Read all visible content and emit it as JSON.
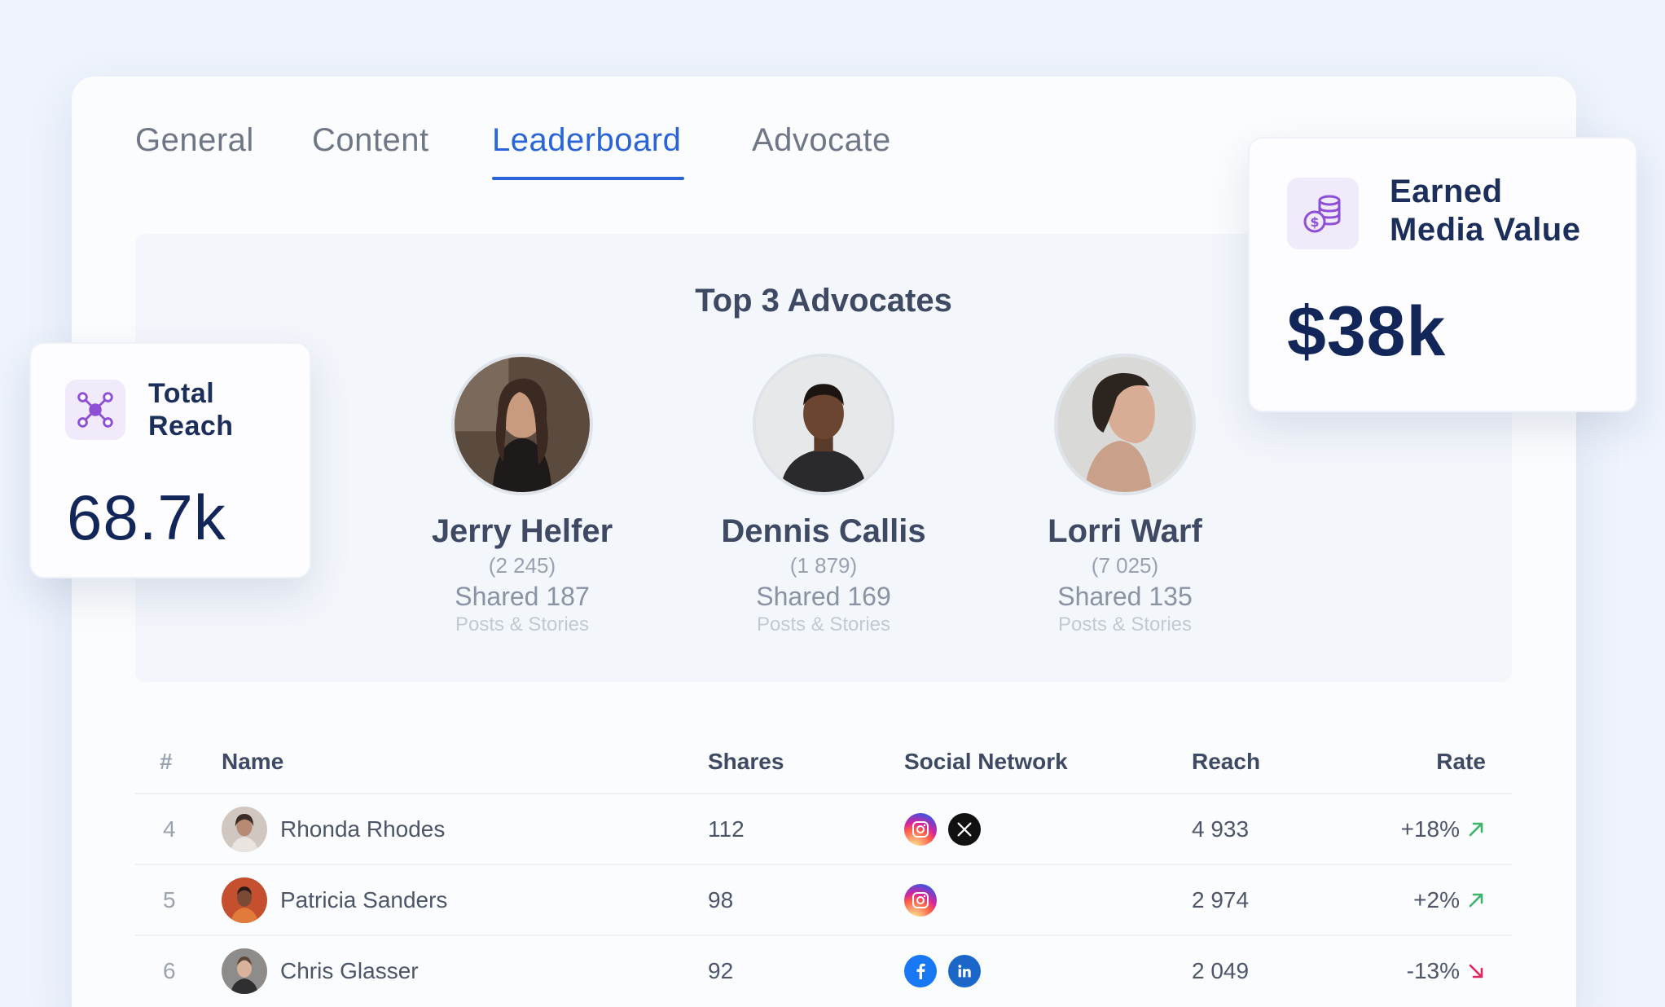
{
  "tabs": [
    {
      "label": "General",
      "active": false
    },
    {
      "label": "Content",
      "active": false
    },
    {
      "label": "Leaderboard",
      "active": true
    },
    {
      "label": "Advocate",
      "active": false
    }
  ],
  "top3": {
    "title": "Top 3 Advocates",
    "advocates": [
      {
        "name": "Jerry Helfer",
        "points": "(2 245)",
        "shared": "Shared 187",
        "sub": "Posts & Stories"
      },
      {
        "name": "Dennis Callis",
        "points": "(1 879)",
        "shared": "Shared 169",
        "sub": "Posts & Stories"
      },
      {
        "name": "Lorri Warf",
        "points": "(7 025)",
        "shared": "Shared 135",
        "sub": "Posts & Stories"
      }
    ]
  },
  "table": {
    "headers": {
      "rank": "#",
      "name": "Name",
      "shares": "Shares",
      "social": "Social Network",
      "reach": "Reach",
      "rate": "Rate"
    },
    "rows": [
      {
        "rank": "4",
        "name": "Rhonda Rhodes",
        "shares": "112",
        "networks": [
          "instagram-icon",
          "x-icon"
        ],
        "reach": "4 933",
        "rate": "+18%",
        "trend": "up"
      },
      {
        "rank": "5",
        "name": "Patricia Sanders",
        "shares": "98",
        "networks": [
          "instagram-icon"
        ],
        "reach": "2 974",
        "rate": "+2%",
        "trend": "up"
      },
      {
        "rank": "6",
        "name": "Chris Glasser",
        "shares": "92",
        "networks": [
          "facebook-icon",
          "linkedin-icon"
        ],
        "reach": "2 049",
        "rate": "-13%",
        "trend": "down"
      }
    ]
  },
  "cards": {
    "total_reach": {
      "label_line1": "Total",
      "label_line2": "Reach",
      "value": "68.7k",
      "icon": "network-icon"
    },
    "earned_media": {
      "label_line1": "Earned",
      "label_line2": "Media Value",
      "value": "$38k",
      "icon": "coins-icon"
    }
  },
  "colors": {
    "accent": "#2a64d6",
    "up": "#3db36b",
    "down": "#e0245e",
    "icon_purple": "#8c4fd6"
  }
}
